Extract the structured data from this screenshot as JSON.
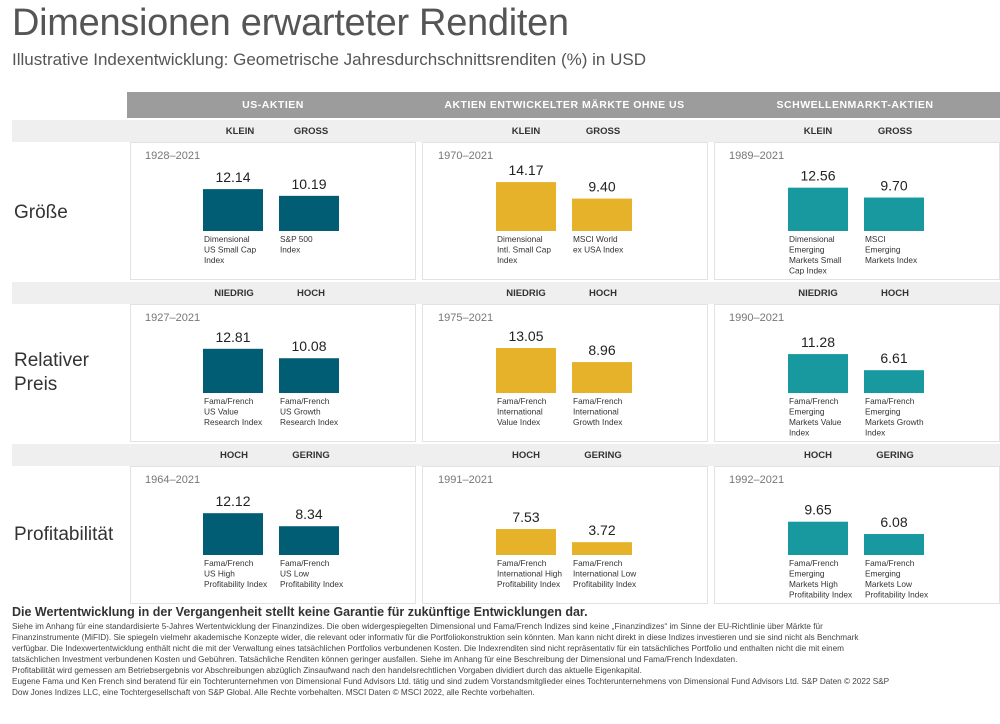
{
  "title": "Dimensionen erwarteter Renditen",
  "subtitle": "Illustrative Indexentwicklung: Geometrische Jahresdurchschnittsrenditen (%) in USD",
  "colors": {
    "us": "#005d73",
    "dev": "#e6b22a",
    "em": "#17999f"
  },
  "chart_data": {
    "type": "bar",
    "title": "Dimensionen erwarteter Renditen",
    "columns": [
      "US-AKTIEN",
      "AKTIEN ENTWICKELTER MÄRKTE OHNE US",
      "SCHWELLENMARKT-AKTIEN"
    ],
    "rows": [
      {
        "label": "Größe",
        "subheaders": [
          "KLEIN",
          "GROSS"
        ],
        "panels": [
          {
            "period": "1928–2021",
            "values": [
              12.14,
              10.19
            ],
            "value_labels": [
              "12.14",
              "10.19"
            ],
            "names": [
              [
                "Dimensional",
                "US Small Cap",
                "Index"
              ],
              [
                "S&P 500",
                "Index"
              ]
            ]
          },
          {
            "period": "1970–2021",
            "values": [
              14.17,
              9.4
            ],
            "value_labels": [
              "14.17",
              "9.40"
            ],
            "names": [
              [
                "Dimensional",
                "Intl. Small Cap",
                "Index"
              ],
              [
                "MSCI World",
                "ex USA Index"
              ]
            ]
          },
          {
            "period": "1989–2021",
            "values": [
              12.56,
              9.7
            ],
            "value_labels": [
              "12.56",
              "9.70"
            ],
            "names": [
              [
                "Dimensional",
                "Emerging",
                "Markets Small",
                "Cap Index"
              ],
              [
                "MSCI",
                "Emerging",
                "Markets Index"
              ]
            ]
          }
        ]
      },
      {
        "label": "Relativer Preis",
        "subheaders": [
          "NIEDRIG",
          "HOCH"
        ],
        "panels": [
          {
            "period": "1927–2021",
            "values": [
              12.81,
              10.08
            ],
            "value_labels": [
              "12.81",
              "10.08"
            ],
            "names": [
              [
                "Fama/French",
                "US Value",
                "Research Index"
              ],
              [
                "Fama/French",
                "US Growth",
                "Research Index"
              ]
            ]
          },
          {
            "period": "1975–2021",
            "values": [
              13.05,
              8.96
            ],
            "value_labels": [
              "13.05",
              "8.96"
            ],
            "names": [
              [
                "Fama/French",
                "International",
                "Value Index"
              ],
              [
                "Fama/French",
                "International",
                "Growth Index"
              ]
            ]
          },
          {
            "period": "1990–2021",
            "values": [
              11.28,
              6.61
            ],
            "value_labels": [
              "11.28",
              "6.61"
            ],
            "names": [
              [
                "Fama/French",
                "Emerging",
                "Markets Value",
                "Index"
              ],
              [
                "Fama/French",
                "Emerging",
                "Markets Growth",
                "Index"
              ]
            ]
          }
        ]
      },
      {
        "label": "Profitabilität",
        "subheaders": [
          "HOCH",
          "GERING"
        ],
        "panels": [
          {
            "period": "1964–2021",
            "values": [
              12.12,
              8.34
            ],
            "value_labels": [
              "12.12",
              "8.34"
            ],
            "names": [
              [
                "Fama/French",
                "US High",
                "Profitability Index"
              ],
              [
                "Fama/French",
                "US Low",
                "Profitability Index"
              ]
            ]
          },
          {
            "period": "1991–2021",
            "values": [
              7.53,
              3.72
            ],
            "value_labels": [
              "7.53",
              "3.72"
            ],
            "names": [
              [
                "Fama/French",
                "International High",
                "Profitability Index"
              ],
              [
                "Fama/French",
                "International Low",
                "Profitability Index"
              ]
            ]
          },
          {
            "period": "1992–2021",
            "values": [
              9.65,
              6.08
            ],
            "value_labels": [
              "9.65",
              "6.08"
            ],
            "names": [
              [
                "Fama/French",
                "Emerging",
                "Markets High",
                "Profitability Index"
              ],
              [
                "Fama/French",
                "Emerging",
                "Markets Low",
                "Profitability Index"
              ]
            ]
          }
        ]
      }
    ]
  },
  "footnote_bold": "Die Wertentwicklung in der Vergangenheit stellt keine Garantie für zukünftige Entwicklungen dar.",
  "footnotes": [
    "Siehe im Anhang für eine standardisierte 5-Jahres Wertentwicklung der Finanzindizes. Die oben widergespiegelten Dimensional und Fama/French Indizes sind keine „Finanzindizes“ im Sinne der EU-Richtlinie über Märkte für",
    "Finanzinstrumente (MiFID). Sie spiegeln vielmehr akademische Konzepte wider, die relevant oder informativ für die Portfoliokonstruktion sein könnten. Man kann nicht direkt in diese Indizes investieren und sie sind nicht als Benchmark",
    "verfügbar. Die Indexwertentwicklung enthält nicht die mit der Verwaltung eines tatsächlichen Portfolios verbundenen Kosten. Die Indexrenditen sind nicht repräsentativ für ein tatsächliches Portfolio und enthalten nicht die mit einem",
    "tatsächlichen Investment verbundenen Kosten und Gebühren. Tatsächliche Renditen können geringer ausfallen. Siehe im Anhang für eine Beschreibung der Dimensional und Fama/French Indexdaten.",
    "Profitabilität wird gemessen am Betriebsergebnis vor Abschreibungen abzüglich Zinsaufwand nach den handelsrechtlichen Vorgaben dividiert durch das aktuelle Eigenkapital.",
    "Eugene Fama und Ken French sind beratend für ein Tochterunternehmen von Dimensional Fund Advisors Ltd. tätig und sind zudem Vorstandsmitglieder eines Tochterunternehmens von Dimensional Fund Advisors Ltd. S&P Daten © 2022 S&P",
    "Dow Jones Indizes LLC, eine Tochtergesellschaft von S&P Global. Alle Rechte vorbehalten. MSCI Daten © MSCI 2022, alle Rechte vorbehalten."
  ]
}
